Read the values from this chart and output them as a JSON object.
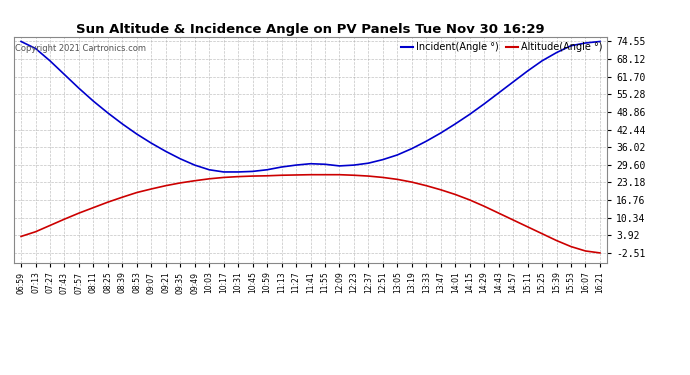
{
  "title": "Sun Altitude & Incidence Angle on PV Panels Tue Nov 30 16:29",
  "copyright": "Copyright 2021 Cartronics.com",
  "legend_incident": "Incident(Angle °)",
  "legend_altitude": "Altitude(Angle °)",
  "incident_color": "#0000cc",
  "altitude_color": "#cc0000",
  "bg_color": "#ffffff",
  "grid_color": "#aaaaaa",
  "yticks": [
    -2.51,
    3.92,
    10.34,
    16.76,
    23.18,
    29.6,
    36.02,
    42.44,
    48.86,
    55.28,
    61.7,
    68.12,
    74.55
  ],
  "ylim_min": -6.0,
  "ylim_max": 76.0,
  "xtick_labels": [
    "06:59",
    "07:13",
    "07:27",
    "07:43",
    "07:57",
    "08:11",
    "08:25",
    "08:39",
    "08:53",
    "09:07",
    "09:21",
    "09:35",
    "09:49",
    "10:03",
    "10:17",
    "10:31",
    "10:45",
    "10:59",
    "11:13",
    "11:27",
    "11:41",
    "11:55",
    "12:09",
    "12:23",
    "12:37",
    "12:51",
    "13:05",
    "13:19",
    "13:33",
    "13:47",
    "14:01",
    "14:15",
    "14:29",
    "14:43",
    "14:57",
    "15:11",
    "15:25",
    "15:39",
    "15:53",
    "16:07",
    "16:21"
  ],
  "incident_values": [
    74.55,
    72.0,
    67.5,
    62.5,
    57.5,
    52.8,
    48.5,
    44.5,
    40.8,
    37.5,
    34.5,
    31.8,
    29.5,
    27.8,
    27.0,
    27.0,
    27.2,
    27.8,
    28.8,
    29.5,
    30.0,
    29.8,
    29.2,
    29.5,
    30.2,
    31.5,
    33.2,
    35.5,
    38.2,
    41.2,
    44.5,
    48.0,
    51.8,
    55.8,
    59.8,
    63.8,
    67.5,
    70.5,
    73.0,
    74.0,
    74.55
  ],
  "altitude_values": [
    3.5,
    5.2,
    7.5,
    9.8,
    12.0,
    14.0,
    16.0,
    17.8,
    19.5,
    20.8,
    22.0,
    23.0,
    23.8,
    24.5,
    25.0,
    25.3,
    25.5,
    25.6,
    25.8,
    25.9,
    26.0,
    26.0,
    26.0,
    25.8,
    25.5,
    25.0,
    24.3,
    23.3,
    22.0,
    20.5,
    18.8,
    16.8,
    14.5,
    12.0,
    9.5,
    7.0,
    4.5,
    2.0,
    -0.2,
    -1.8,
    -2.51
  ],
  "incident_min": 27.0,
  "incident_max": 74.55,
  "noon_index": 22,
  "figwidth": 6.9,
  "figheight": 3.75,
  "dpi": 100
}
